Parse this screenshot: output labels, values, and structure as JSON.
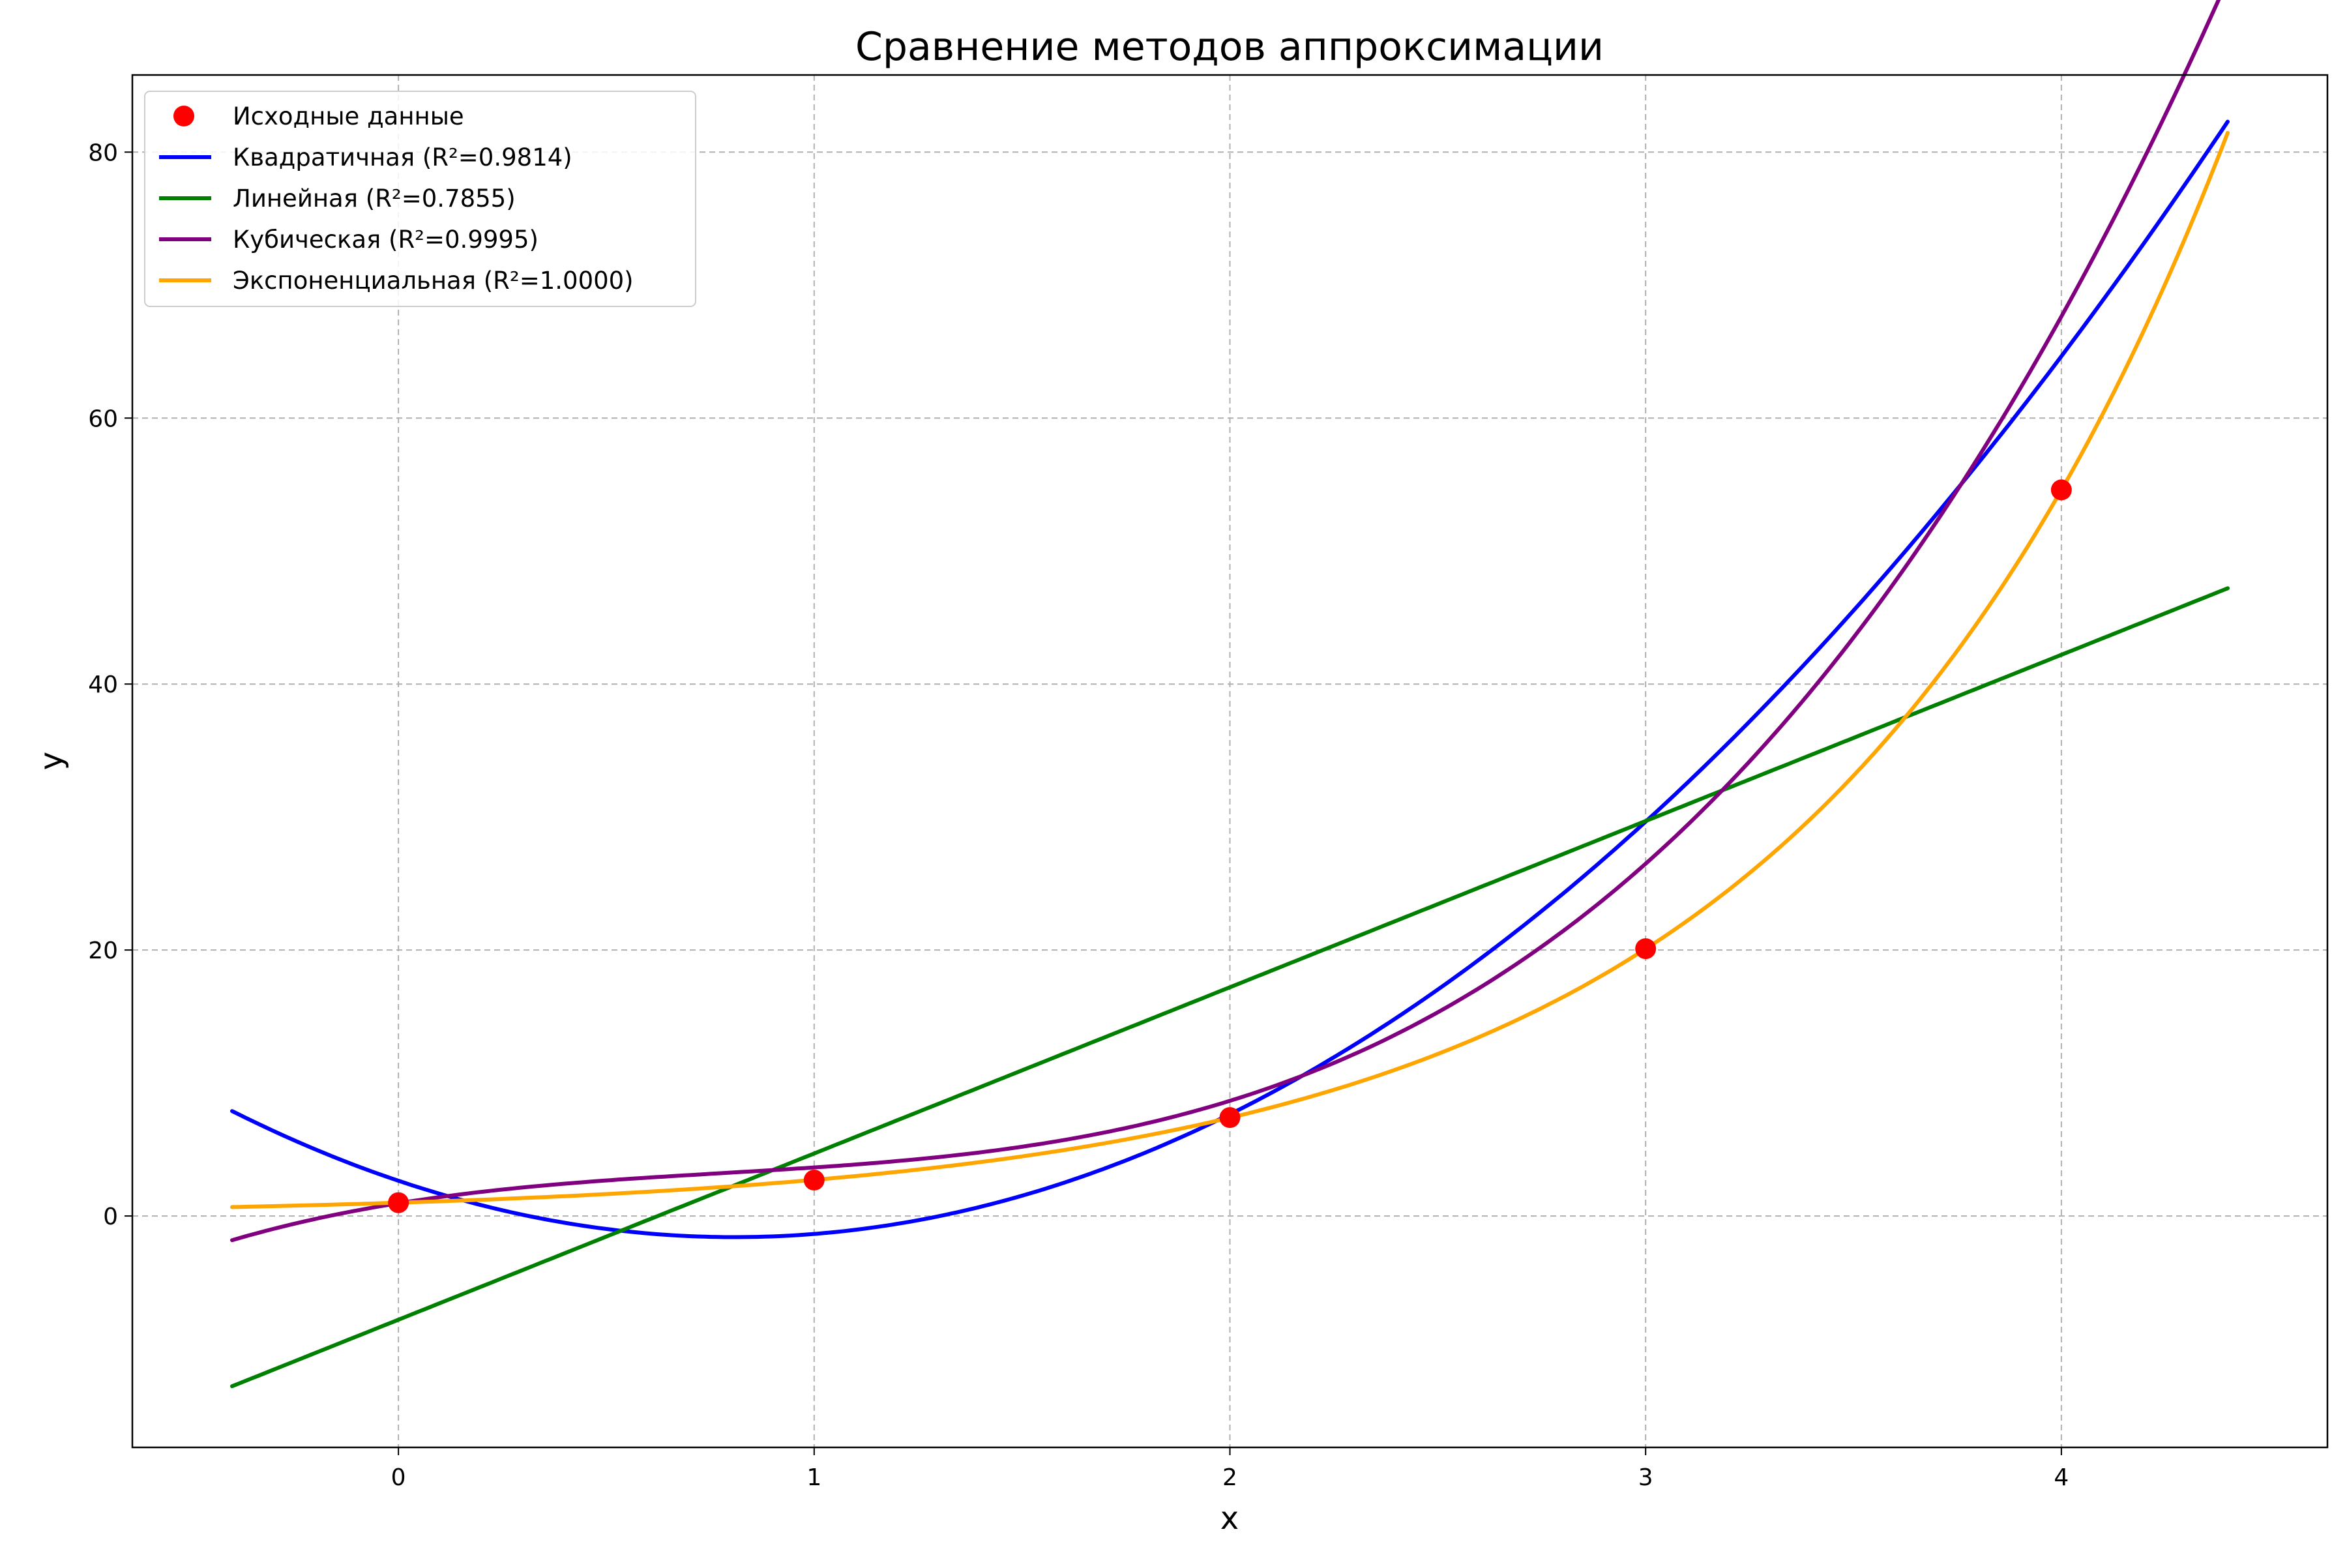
{
  "chart_data": {
    "type": "line",
    "title": "Сравнение методов аппроксимации",
    "xlabel": "x",
    "ylabel": "y",
    "xlim": [
      -0.64,
      4.64
    ],
    "ylim": [
      -17.4,
      85.8
    ],
    "xticks": [
      0,
      1,
      2,
      3,
      4
    ],
    "yticks": [
      0,
      20,
      40,
      60,
      80
    ],
    "grid": true,
    "legend_position": "top-left",
    "scatter": {
      "name": "Исходные данные",
      "color": "#ff0000",
      "x": [
        0,
        1,
        2,
        3,
        4
      ],
      "y": [
        1.0,
        2.7,
        7.4,
        20.1,
        54.6
      ]
    },
    "curve_domain": [
      -0.4,
      4.4
    ],
    "series": [
      {
        "name": "Квадратичная (R²=0.9814)",
        "color": "#0000ff",
        "model": "quadratic",
        "coefficients": [
          6.5,
          -10.5,
          2.65
        ]
      },
      {
        "name": "Линейная (R²=0.7855)",
        "color": "#008000",
        "model": "linear",
        "coefficients": [
          12.5,
          -7.8
        ]
      },
      {
        "name": "Кубическая (R²=0.9995)",
        "color": "#800080",
        "model": "cubic",
        "coefficients": [
          1.75,
          -4.09,
          5.03,
          0.96
        ]
      },
      {
        "name": "Экспоненциальная (R²=1.0000)",
        "color": "#ffa500",
        "model": "exponential",
        "coefficients": [
          1.0,
          1.0
        ]
      }
    ]
  }
}
